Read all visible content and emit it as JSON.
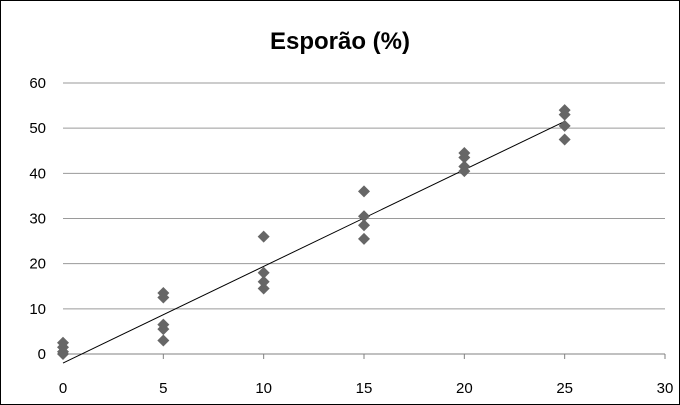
{
  "chart_data": {
    "type": "scatter",
    "title": "Esporão (%)",
    "xlabel": "",
    "ylabel": "",
    "xlim": [
      0,
      30
    ],
    "ylim": [
      0,
      60
    ],
    "x_ticks": [
      0,
      5,
      10,
      15,
      20,
      25,
      30
    ],
    "y_ticks": [
      0,
      10,
      20,
      30,
      40,
      50,
      60
    ],
    "grid": "horizontal",
    "legend": "none",
    "marker": "diamond",
    "marker_color": "#666666",
    "trendline": {
      "type": "linear",
      "from": [
        0,
        -2
      ],
      "to": [
        25,
        51.5
      ],
      "color": "#000000"
    },
    "series": [
      {
        "points": [
          [
            0,
            0
          ],
          [
            0,
            0.5
          ],
          [
            0,
            1.5
          ],
          [
            0,
            2.5
          ],
          [
            5,
            3
          ],
          [
            5,
            5.5
          ],
          [
            5,
            6.5
          ],
          [
            5,
            12.5
          ],
          [
            5,
            13.5
          ],
          [
            10,
            14.5
          ],
          [
            10,
            16
          ],
          [
            10,
            18
          ],
          [
            10,
            26
          ],
          [
            15,
            25.5
          ],
          [
            15,
            28.5
          ],
          [
            15,
            30.5
          ],
          [
            15,
            36
          ],
          [
            20,
            40.5
          ],
          [
            20,
            41.5
          ],
          [
            20,
            43.5
          ],
          [
            20,
            44.5
          ],
          [
            25,
            47.5
          ],
          [
            25,
            50.5
          ],
          [
            25,
            53
          ],
          [
            25,
            54
          ]
        ]
      }
    ]
  }
}
